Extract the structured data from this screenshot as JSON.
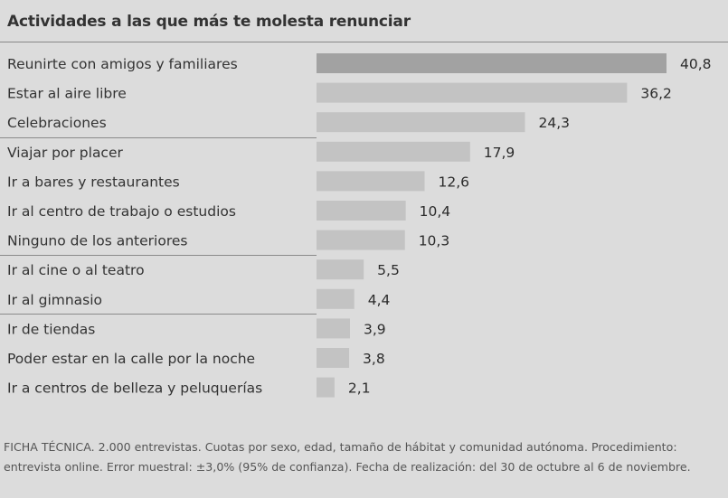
{
  "chart_data": {
    "type": "bar",
    "orientation": "horizontal",
    "title": "Actividades a las que más te molesta renunciar",
    "categories": [
      "Reunirte con amigos y familiares",
      "Estar al aire libre",
      "Celebraciones",
      "Viajar por placer",
      "Ir a bares y restaurantes",
      "Ir al centro de trabajo o estudios",
      "Ninguno de los anteriores",
      "Ir al cine o al teatro",
      "Ir al gimnasio",
      "Ir de tiendas",
      "Poder estar en la calle por la noche",
      "Ir a centros de belleza y peluquerías"
    ],
    "values": [
      40.8,
      36.2,
      24.3,
      17.9,
      12.6,
      10.4,
      10.3,
      5.5,
      4.4,
      3.9,
      3.8,
      2.1
    ],
    "value_labels": [
      "40,8",
      "36,2",
      "24,3",
      "17,9",
      "12,6",
      "10,4",
      "10,3",
      "5,5",
      "4,4",
      "3,9",
      "3,8",
      "2,1"
    ],
    "xlim": [
      0,
      40.8
    ],
    "grid": false,
    "colors": {
      "highlight": "#a2a2a2",
      "bar": "#c3c3c3"
    },
    "highlight_index": 0
  },
  "footnote": "FICHA TÉCNICA. 2.000 entrevistas. Cuotas por sexo, edad, tamaño de hábitat y comunidad autónoma. Procedimiento: entrevista online. Error muestral: ±3,0% (95% de confianza). Fecha de realización: del 30 de octubre al 6 de noviembre."
}
